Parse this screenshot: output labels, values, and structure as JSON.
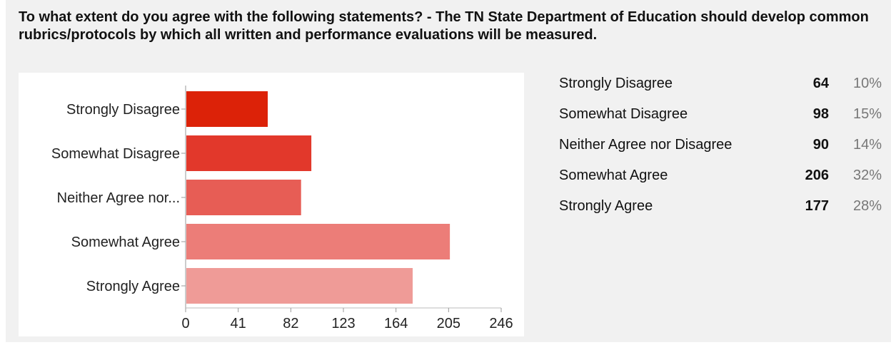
{
  "question": "To what extent do you agree with the following statements? - The TN State Department of Education should develop common rubrics/protocols by which all written and performance evaluations will be measured.",
  "summary": [
    {
      "label": "Strongly Disagree",
      "count": "64",
      "percent": "10%"
    },
    {
      "label": "Somewhat Disagree",
      "count": "98",
      "percent": "15%"
    },
    {
      "label": "Neither Agree nor Disagree",
      "count": "90",
      "percent": "14%"
    },
    {
      "label": "Somewhat Agree",
      "count": "206",
      "percent": "32%"
    },
    {
      "label": "Strongly Agree",
      "count": "177",
      "percent": "28%"
    }
  ],
  "chart_data": {
    "type": "bar",
    "orientation": "horizontal",
    "categories": [
      "Strongly Disagree",
      "Somewhat Disagree",
      "Neither Agree nor...",
      "Somewhat Agree",
      "Strongly Agree"
    ],
    "values": [
      64,
      98,
      90,
      206,
      177
    ],
    "xlim": [
      0,
      246
    ],
    "xticks": [
      "0",
      "41",
      "82",
      "123",
      "164",
      "205",
      "246"
    ],
    "colors": [
      "#dc2208",
      "#e2382b",
      "#e75d55",
      "#ec7d78",
      "#ef9b97"
    ],
    "grid": false,
    "legend": "none"
  }
}
